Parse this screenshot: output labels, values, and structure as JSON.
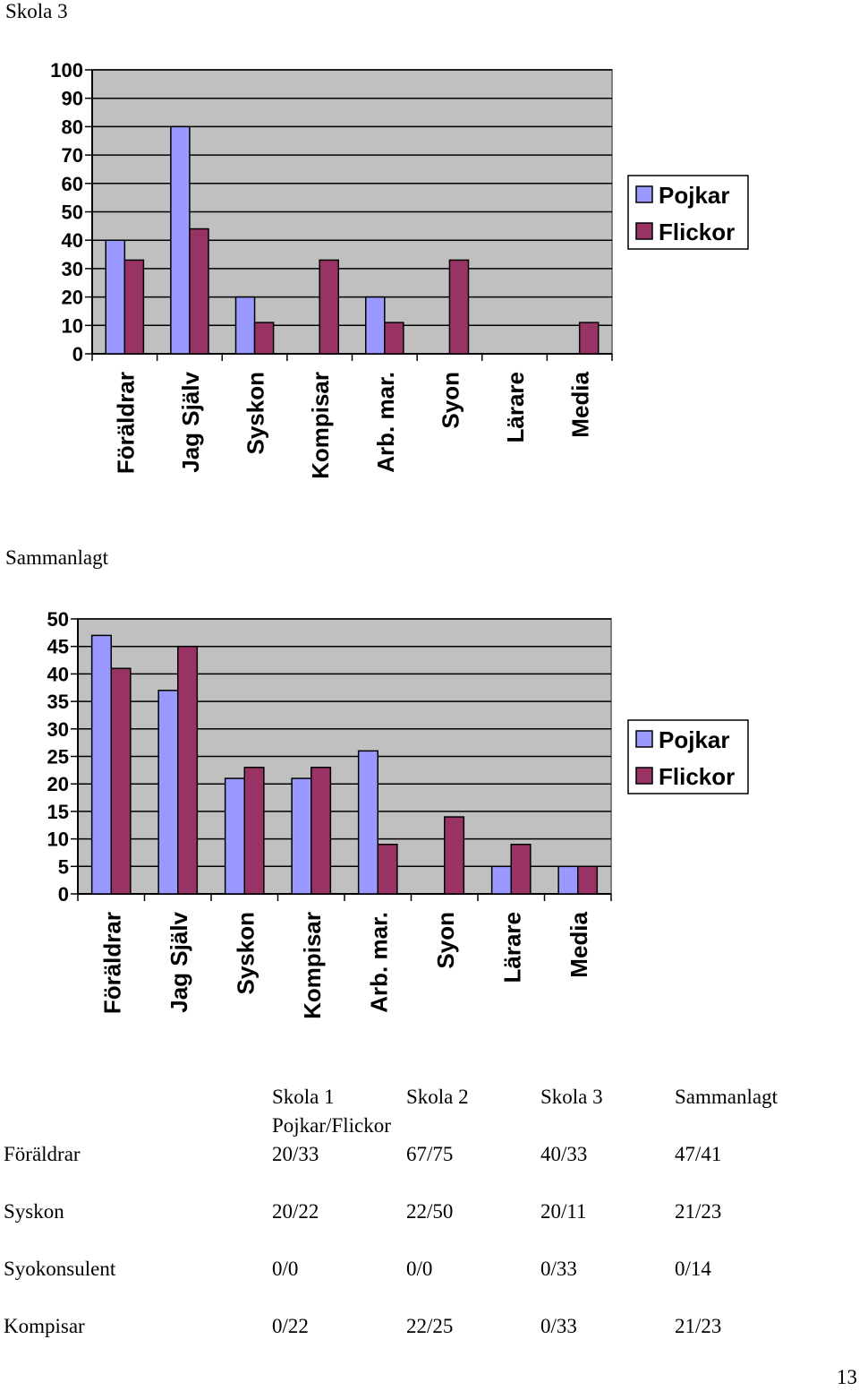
{
  "chart_data": [
    {
      "type": "bar",
      "title": "Skola 3",
      "categories": [
        "Föräldrar",
        "Jag Själv",
        "Syskon",
        "Kompisar",
        "Arb. mar.",
        "Syon",
        "Lärare",
        "Media"
      ],
      "series": [
        {
          "name": "Pojkar",
          "values": [
            40,
            80,
            20,
            0,
            20,
            0,
            0,
            0
          ]
        },
        {
          "name": "Flickor",
          "values": [
            33,
            44,
            11,
            33,
            11,
            33,
            0,
            11
          ]
        }
      ],
      "yticks": [
        0,
        10,
        20,
        30,
        40,
        50,
        60,
        70,
        80,
        90,
        100
      ],
      "ylim": [
        0,
        100
      ],
      "grid": true,
      "legend": "right",
      "colors": {
        "Pojkar": "#9999ff",
        "Flickor": "#993366",
        "plot_bg": "#c0c0c0"
      }
    },
    {
      "type": "bar",
      "title": "Sammanlagt",
      "categories": [
        "Föräldrar",
        "Jag Själv",
        "Syskon",
        "Kompisar",
        "Arb. mar.",
        "Syon",
        "Lärare",
        "Media"
      ],
      "series": [
        {
          "name": "Pojkar",
          "values": [
            47,
            37,
            21,
            21,
            26,
            0,
            5,
            5
          ]
        },
        {
          "name": "Flickor",
          "values": [
            41,
            45,
            23,
            23,
            9,
            14,
            9,
            5
          ]
        }
      ],
      "yticks": [
        0,
        5,
        10,
        15,
        20,
        25,
        30,
        35,
        40,
        45,
        50
      ],
      "ylim": [
        0,
        50
      ],
      "grid": true,
      "legend": "right",
      "colors": {
        "Pojkar": "#9999ff",
        "Flickor": "#993366",
        "plot_bg": "#c0c0c0"
      }
    }
  ],
  "table": {
    "headers": [
      "Skola 1",
      "Skola 2",
      "Skola 3",
      "Sammanlagt"
    ],
    "subheader": "Pojkar/Flickor",
    "rows": [
      {
        "label": "Föräldrar",
        "values": [
          "20/33",
          "67/75",
          "40/33",
          "47/41"
        ]
      },
      {
        "label": "Syskon",
        "values": [
          "20/22",
          "22/50",
          "20/11",
          "21/23"
        ]
      },
      {
        "label": "Syokonsulent",
        "values": [
          "0/0",
          "0/0",
          "0/33",
          "0/14"
        ]
      },
      {
        "label": "Kompisar",
        "values": [
          "0/22",
          "22/25",
          "0/33",
          "21/23"
        ]
      }
    ]
  },
  "page_number": "13"
}
